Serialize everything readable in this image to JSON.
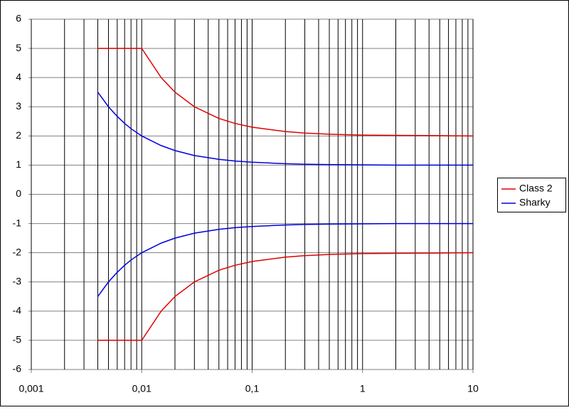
{
  "chart_data": {
    "type": "line",
    "xscale": "log",
    "grid": true,
    "legend": "right",
    "xlim": [
      0.001,
      10
    ],
    "ylim": [
      -6,
      6
    ],
    "xticks": [
      {
        "value": 0.001,
        "label": "0,001"
      },
      {
        "value": 0.01,
        "label": "0,01"
      },
      {
        "value": 0.1,
        "label": "0,1"
      },
      1,
      10
    ],
    "yticks": [
      -6,
      -5,
      -4,
      -3,
      -2,
      -1,
      0,
      1,
      2,
      3,
      4,
      5,
      6
    ],
    "x": [
      0.004,
      0.005,
      0.006,
      0.007,
      0.008,
      0.01,
      0.015,
      0.02,
      0.03,
      0.05,
      0.07,
      0.1,
      0.2,
      0.3,
      0.5,
      1,
      2,
      5,
      10
    ],
    "series": [
      {
        "name": "Class 2",
        "color": "#e00000",
        "branches": [
          [
            5,
            5,
            5,
            5,
            5,
            5,
            4,
            3.5,
            3,
            2.6,
            2.43,
            2.3,
            2.15,
            2.1,
            2.06,
            2.03,
            2.02,
            2.01,
            2
          ],
          [
            -5,
            -5,
            -5,
            -5,
            -5,
            -5,
            -4,
            -3.5,
            -3,
            -2.6,
            -2.43,
            -2.3,
            -2.15,
            -2.1,
            -2.06,
            -2.03,
            -2.02,
            -2.01,
            -2
          ]
        ]
      },
      {
        "name": "Sharky",
        "color": "#0000e0",
        "branches": [
          [
            3.5,
            3,
            2.67,
            2.43,
            2.25,
            2,
            1.67,
            1.5,
            1.33,
            1.2,
            1.14,
            1.1,
            1.05,
            1.03,
            1.02,
            1.01,
            1,
            1,
            1
          ],
          [
            -3.5,
            -3,
            -2.67,
            -2.43,
            -2.25,
            -2,
            -1.67,
            -1.5,
            -1.33,
            -1.2,
            -1.14,
            -1.1,
            -1.05,
            -1.03,
            -1.02,
            -1.01,
            -1,
            -1,
            -1
          ]
        ]
      }
    ]
  }
}
